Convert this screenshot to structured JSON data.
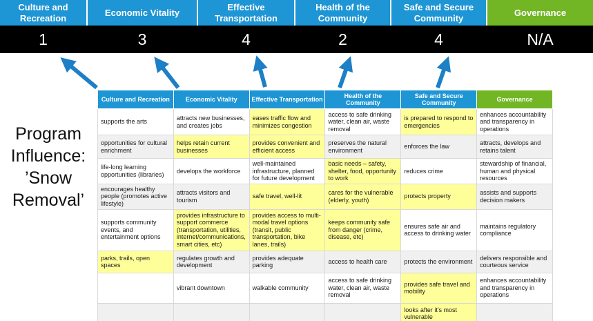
{
  "colors": {
    "blue": "#1e95d4",
    "green": "#72b626",
    "hl": "#ffff99",
    "arrow": "#1d7fc6",
    "score_band": "#000000"
  },
  "annotation": {
    "text": "Program Influence: ’Snow Removal’"
  },
  "scoreboard": {
    "columns": [
      {
        "label": "Culture and Recreation",
        "score": "1",
        "theme": "blue"
      },
      {
        "label": "Economic Vitality",
        "score": "3",
        "theme": "blue"
      },
      {
        "label": "Effective Transportation",
        "score": "4",
        "theme": "blue"
      },
      {
        "label": "Health of the Community",
        "score": "2",
        "theme": "blue"
      },
      {
        "label": "Safe and Secure Community",
        "score": "4",
        "theme": "blue"
      },
      {
        "label": "Governance",
        "score": "N/A",
        "theme": "green"
      }
    ]
  },
  "matrix": {
    "headers": [
      {
        "label": "Culture and Recreation",
        "theme": "blue"
      },
      {
        "label": "Economic Vitality",
        "theme": "blue"
      },
      {
        "label": "Effective Transportation",
        "theme": "blue"
      },
      {
        "label": "Health of the Community",
        "theme": "blue"
      },
      {
        "label": "Safe and Secure Community",
        "theme": "blue"
      },
      {
        "label": "Governance",
        "theme": "green"
      }
    ],
    "rows": [
      {
        "cells": [
          {
            "text": "supports the arts",
            "hl": false
          },
          {
            "text": "attracts new businesses, and creates jobs",
            "hl": false
          },
          {
            "text": "eases traffic flow and minimizes congestion",
            "hl": true
          },
          {
            "text": "access to safe drinking water, clean air, waste removal",
            "hl": false
          },
          {
            "text": "is prepared to respond to emergencies",
            "hl": true
          },
          {
            "text": "enhances accountability and transparency in operations",
            "hl": false
          }
        ]
      },
      {
        "cells": [
          {
            "text": "opportunities for cultural enrichment",
            "hl": false
          },
          {
            "text": "helps retain current businesses",
            "hl": true
          },
          {
            "text": "provides convenient and efficient access",
            "hl": true
          },
          {
            "text": "preserves the natural environment",
            "hl": false
          },
          {
            "text": "enforces the law",
            "hl": false
          },
          {
            "text": "attracts, develops and retains talent",
            "hl": false
          }
        ]
      },
      {
        "cells": [
          {
            "text": "life-long learning opportunities (libraries)",
            "hl": false
          },
          {
            "text": "develops the workforce",
            "hl": false
          },
          {
            "text": "well-maintained infrastructure, planned for future development",
            "hl": false
          },
          {
            "text": "basic needs – safety, shelter, food, opportunity to work",
            "hl": true
          },
          {
            "text": "reduces crime",
            "hl": false
          },
          {
            "text": "stewardship of financial, human and physical resources",
            "hl": false
          }
        ]
      },
      {
        "cells": [
          {
            "text": "encourages healthy people (promotes active lifestyle)",
            "hl": false
          },
          {
            "text": "attracts visitors and tourism",
            "hl": false
          },
          {
            "text": "safe travel, well-lit",
            "hl": true
          },
          {
            "text": "cares for the vulnerable (elderly, youth)",
            "hl": true
          },
          {
            "text": "protects property",
            "hl": true
          },
          {
            "text": "assists and supports decision makers",
            "hl": false
          }
        ]
      },
      {
        "cells": [
          {
            "text": "supports community events, and entertainment options",
            "hl": false
          },
          {
            "text": "provides infrastructure to support commerce (transportation, utilities, internet/communications, smart cities, etc)",
            "hl": true
          },
          {
            "text": "provides access to multi-modal travel options (transit, public transportation, bike lanes, trails)",
            "hl": true
          },
          {
            "text": "keeps community safe from danger (crime, disease, etc)",
            "hl": true
          },
          {
            "text": "ensures safe air and access to drinking water",
            "hl": false
          },
          {
            "text": "maintains regulatory compliance",
            "hl": false
          }
        ]
      },
      {
        "cells": [
          {
            "text": "parks, trails, open spaces",
            "hl": true
          },
          {
            "text": "regulates growth and development",
            "hl": false
          },
          {
            "text": "provides adequate parking",
            "hl": false
          },
          {
            "text": "access to health care",
            "hl": false
          },
          {
            "text": "protects the environment",
            "hl": false
          },
          {
            "text": "delivers responsible and courteous service",
            "hl": false
          }
        ]
      },
      {
        "cells": [
          {
            "text": "",
            "hl": false
          },
          {
            "text": "vibrant downtown",
            "hl": false
          },
          {
            "text": "walkable community",
            "hl": false
          },
          {
            "text": "access to safe drinking water, clean air, waste removal",
            "hl": false
          },
          {
            "text": "provides safe travel and mobility",
            "hl": true
          },
          {
            "text": "enhances accountability and transparency in operations",
            "hl": false
          }
        ]
      },
      {
        "cells": [
          {
            "text": "",
            "hl": false
          },
          {
            "text": "",
            "hl": false
          },
          {
            "text": "",
            "hl": false
          },
          {
            "text": "",
            "hl": false
          },
          {
            "text": "looks after it's most vulnerable",
            "hl": true
          },
          {
            "text": "",
            "hl": false
          }
        ]
      }
    ]
  }
}
